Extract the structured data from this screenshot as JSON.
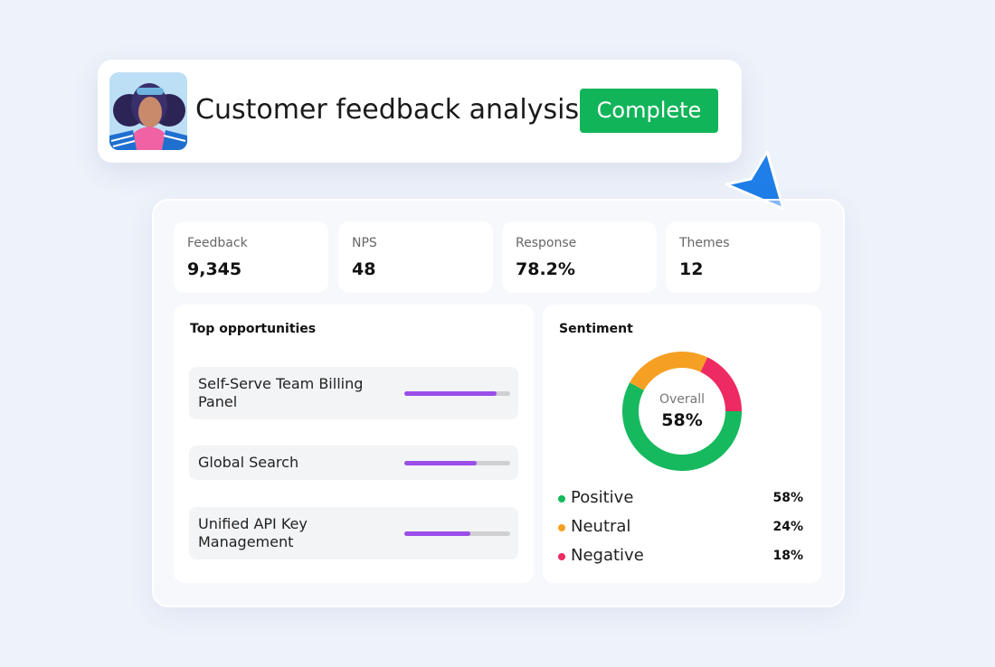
{
  "header": {
    "title": "Customer feedback analysis",
    "status": "Complete"
  },
  "metrics": [
    {
      "label": "Feedback",
      "value": "9,345"
    },
    {
      "label": "NPS",
      "value": "48"
    },
    {
      "label": "Response",
      "value": "78.2%"
    },
    {
      "label": "Themes",
      "value": "12"
    }
  ],
  "opportunities": {
    "title": "Top opportunities",
    "xlim": [
      0,
      100
    ],
    "items": [
      {
        "name": "Self-Serve Team Billing Panel",
        "value": 87
      },
      {
        "name": "Global Search",
        "value": 68
      },
      {
        "name": "Unified API Key Management",
        "value": 62
      }
    ],
    "color": "#9b4de8"
  },
  "sentiment": {
    "type": "donut",
    "title": "Sentiment",
    "center_label": "Overall",
    "categories": [
      "Positive",
      "Neutral",
      "Negative"
    ],
    "values": [
      58,
      24,
      18
    ],
    "value_labels": [
      "58%",
      "24%",
      "18%"
    ],
    "colors": [
      "#16b95e",
      "#f5a023",
      "#ee2a62"
    ]
  }
}
